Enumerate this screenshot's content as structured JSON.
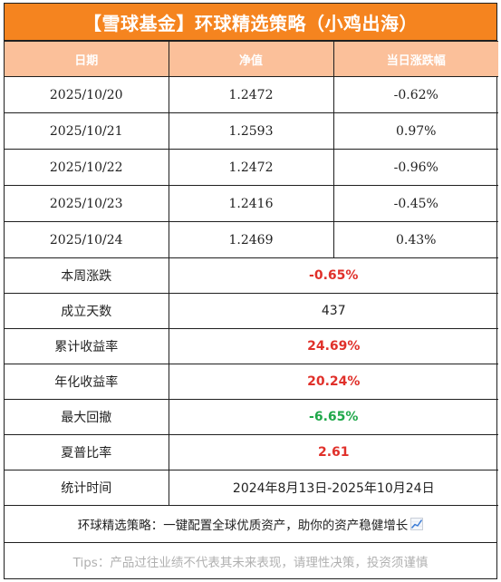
{
  "title": "【雪球基金】环球精选策略（小鸡出海）",
  "headers": {
    "date": "日期",
    "nav": "净值",
    "change": "当日涨跌幅"
  },
  "rows": [
    {
      "date": "2025/10/20",
      "nav": "1.2472",
      "change": "-0.62%"
    },
    {
      "date": "2025/10/21",
      "nav": "1.2593",
      "change": "0.97%"
    },
    {
      "date": "2025/10/22",
      "nav": "1.2472",
      "change": "-0.96%"
    },
    {
      "date": "2025/10/23",
      "nav": "1.2416",
      "change": "-0.45%"
    },
    {
      "date": "2025/10/24",
      "nav": "1.2469",
      "change": "0.43%"
    }
  ],
  "stats": [
    {
      "label": "本周涨跌",
      "value": "-0.65%",
      "tone": "red"
    },
    {
      "label": "成立天数",
      "value": "437",
      "tone": "plain"
    },
    {
      "label": "累计收益率",
      "value": "24.69%",
      "tone": "red"
    },
    {
      "label": "年化收益率",
      "value": "20.24%",
      "tone": "red"
    },
    {
      "label": "最大回撤",
      "value": "-6.65%",
      "tone": "green"
    },
    {
      "label": "夏普比率",
      "value": "2.61",
      "tone": "red"
    },
    {
      "label": "统计时间",
      "value": "2024年8月13日-2025年10月24日",
      "tone": "plain"
    }
  ],
  "note": "环球精选策略：一键配置全球优质资产，助你的资产稳健增长",
  "note_icon": "chart-increasing-icon",
  "tips": "Tips：产品过往业绩不代表其未来表现，请理性决策，投资须谨慎",
  "colors": {
    "header_orange": "#f5841f",
    "subheader_peach": "#fbc09a",
    "up_red": "#e0302a",
    "down_green": "#1fa84a"
  }
}
